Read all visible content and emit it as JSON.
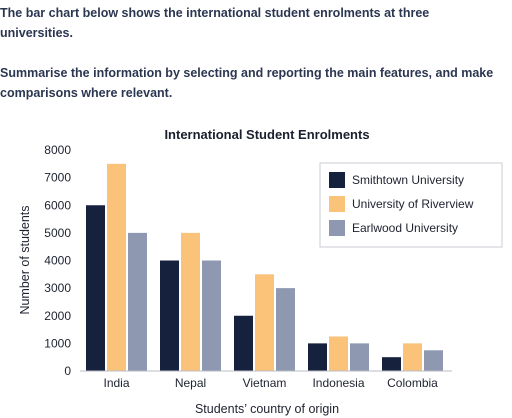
{
  "prompt": {
    "intro": "The bar chart below shows the international student enrolments at three universities.",
    "task": "Summarise the information by selecting and reporting the main features, and make comparisons where relevant."
  },
  "colors": {
    "smithtown": "#16213d",
    "riverview": "#fbc27a",
    "earlwood": "#8e98b1"
  },
  "chart_data": {
    "type": "bar",
    "title": "International Student Enrolments",
    "xlabel": "Students’ country of origin",
    "ylabel": "Number of students",
    "ylim": [
      0,
      8000
    ],
    "yticks": [
      0,
      1000,
      2000,
      3000,
      4000,
      5000,
      6000,
      7000,
      8000
    ],
    "grid": false,
    "legend": "top-right",
    "categories": [
      "India",
      "Nepal",
      "Vietnam",
      "Indonesia",
      "Colombia"
    ],
    "series": [
      {
        "name": "Smithtown University",
        "color": "#16213d",
        "values": [
          6000,
          4000,
          2000,
          1000,
          500
        ]
      },
      {
        "name": "University of Riverview",
        "color": "#fbc27a",
        "values": [
          7500,
          5000,
          3500,
          1250,
          1000
        ]
      },
      {
        "name": "Earlwood University",
        "color": "#8e98b1",
        "values": [
          5000,
          4000,
          3000,
          1000,
          750
        ]
      }
    ]
  }
}
